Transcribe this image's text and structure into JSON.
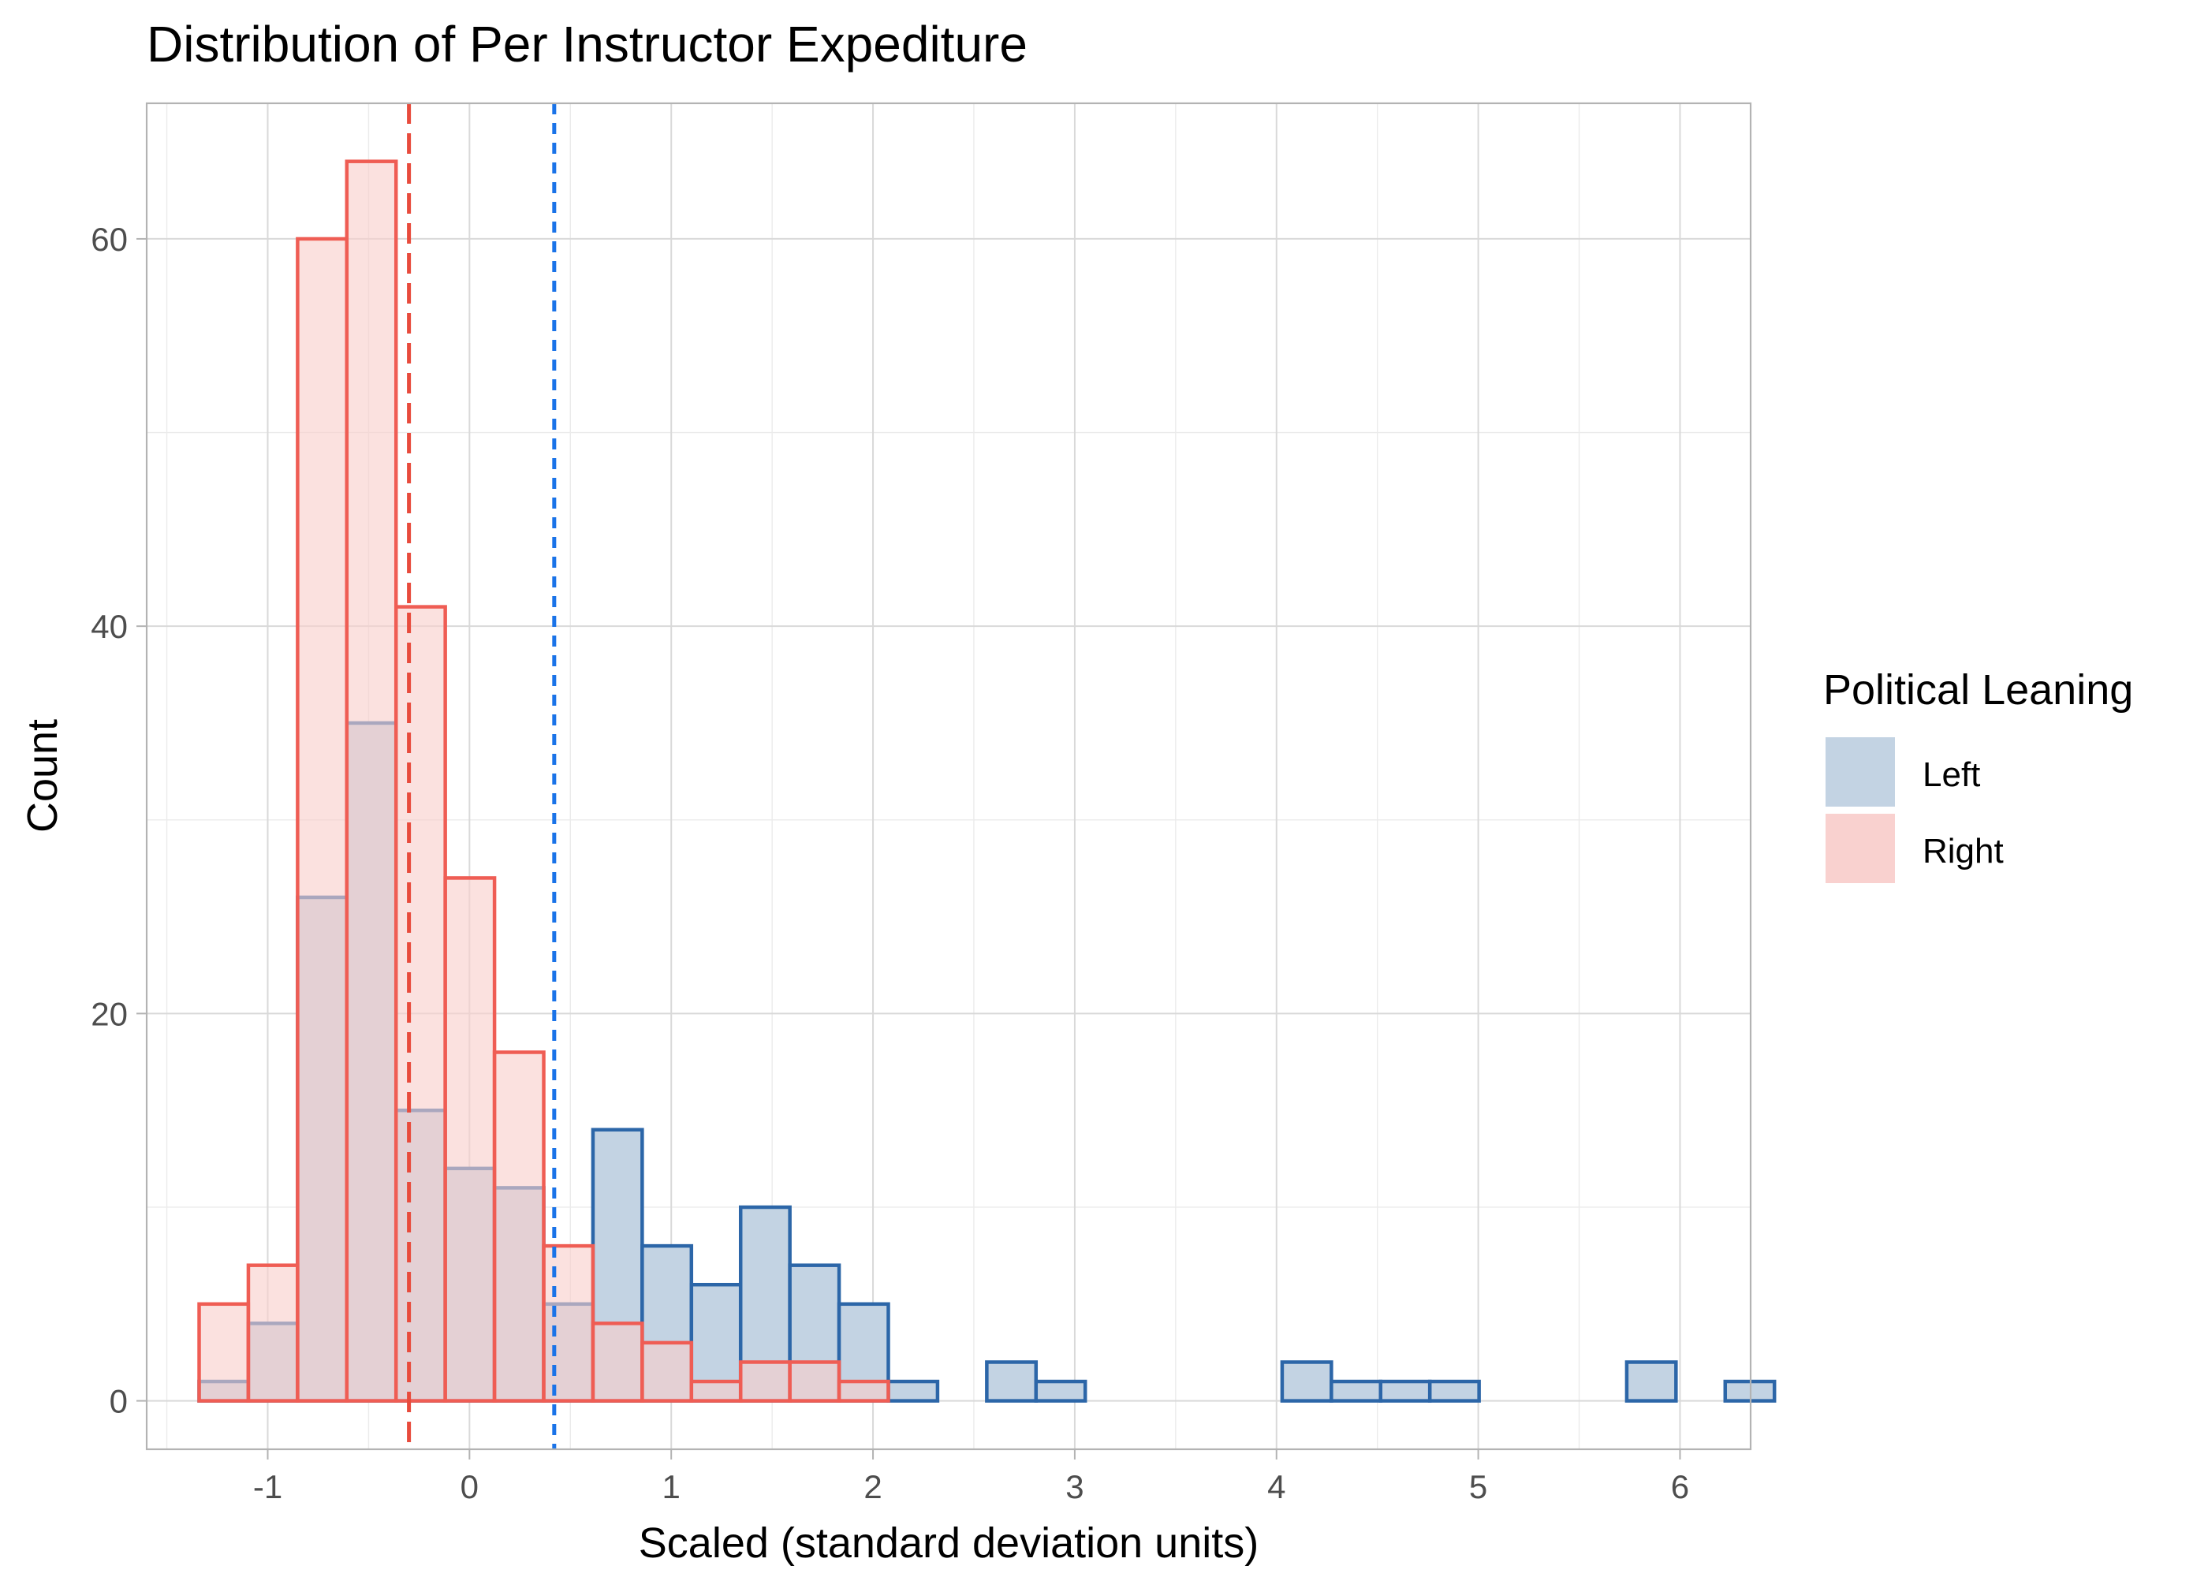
{
  "chart_data": {
    "type": "histogram",
    "title": "Distribution of Per Instructor Expediture",
    "xlabel": "Scaled (standard deviation units)",
    "ylabel": "Count",
    "xlim": [
      -1.6,
      6.35
    ],
    "ylim": [
      -2.5,
      67
    ],
    "x_ticks": [
      -1,
      0,
      1,
      2,
      3,
      4,
      5,
      6
    ],
    "y_ticks": [
      0,
      20,
      40,
      60
    ],
    "grid": true,
    "bin_width": 0.244,
    "bin_start": -1.34,
    "legend": {
      "title": "Political Leaning",
      "position": "right"
    },
    "series": [
      {
        "name": "Left",
        "fill": "#c3d3e3",
        "stroke": "#2c66a8",
        "values": [
          1,
          4,
          26,
          35,
          15,
          12,
          11,
          5,
          14,
          8,
          6,
          10,
          7,
          5,
          1,
          0,
          2,
          1,
          0,
          0,
          0,
          0,
          2,
          1,
          1,
          1,
          0,
          0,
          0,
          2,
          0,
          1
        ],
        "mean_line": 0.42,
        "mean_line_color": "#1a73e8"
      },
      {
        "name": "Right",
        "fill": "#f9cfcc",
        "stroke": "#ef5d54",
        "values": [
          5,
          7,
          60,
          64,
          41,
          27,
          18,
          8,
          4,
          3,
          1,
          2,
          2,
          1,
          0,
          0,
          0,
          0,
          0,
          0,
          0,
          0,
          0,
          0,
          0,
          0,
          0,
          0,
          0,
          0,
          0,
          0
        ],
        "mean_line": -0.3,
        "mean_line_color": "#e84b3c"
      }
    ]
  }
}
